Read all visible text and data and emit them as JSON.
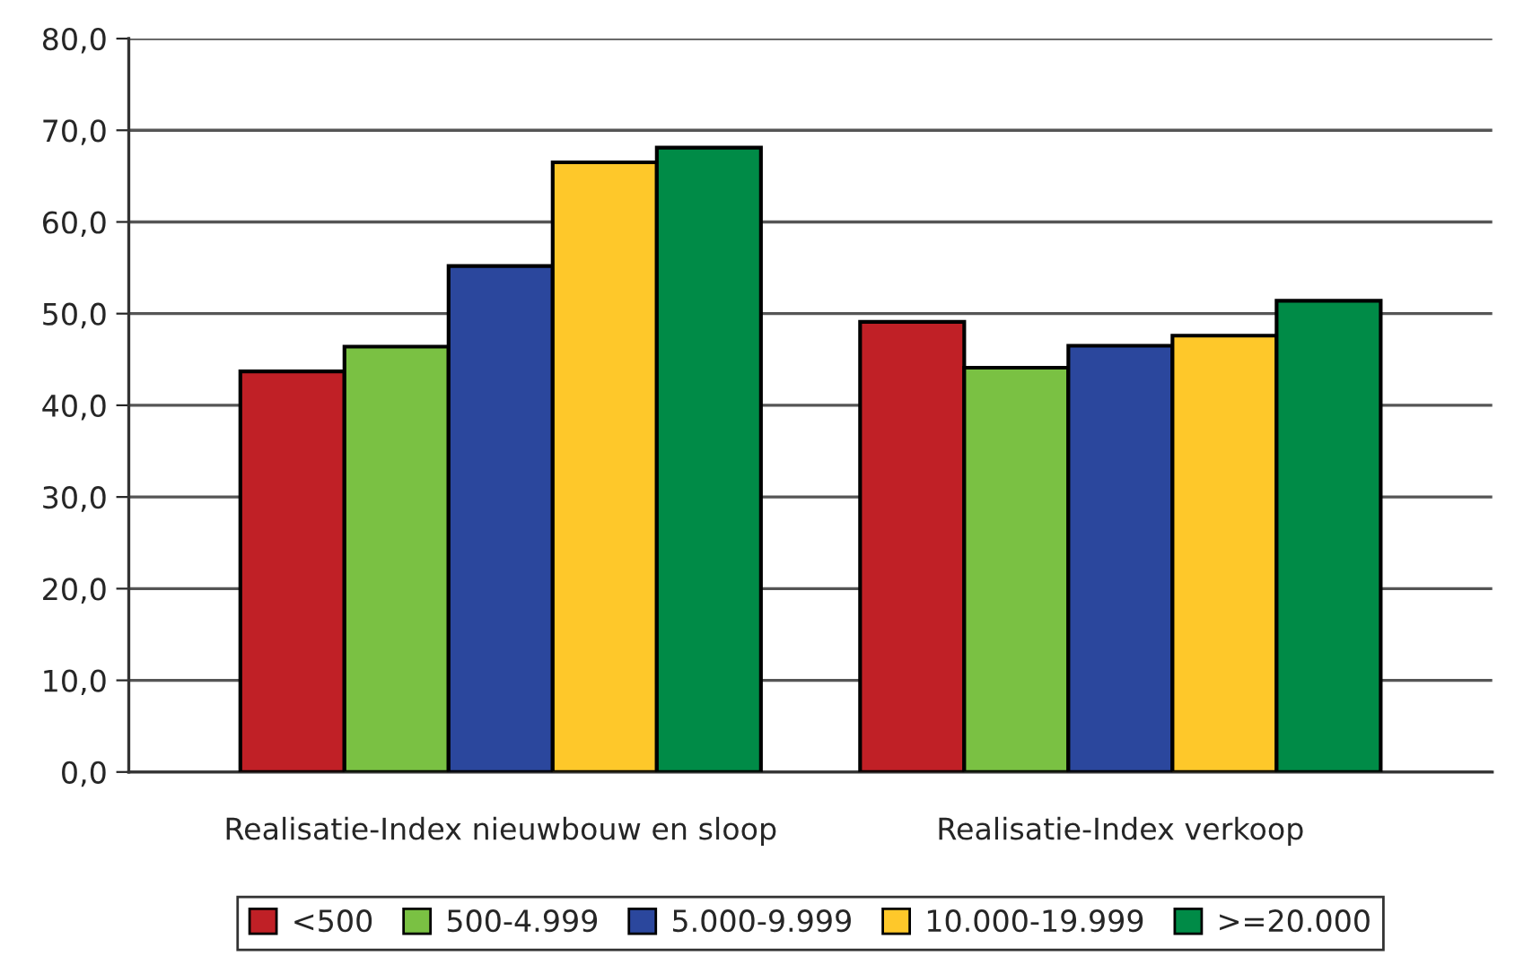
{
  "chart_data": {
    "type": "bar",
    "categories": [
      "Realisatie-Index nieuwbouw en sloop",
      "Realisatie-Index verkoop"
    ],
    "series": [
      {
        "name": "<500",
        "color": "#c02026",
        "values": [
          43.7,
          49.1
        ]
      },
      {
        "name": "500-4.999",
        "color": "#7ac143",
        "values": [
          46.4,
          44.1
        ]
      },
      {
        "name": "5.000-9.999",
        "color": "#2b479d",
        "values": [
          55.2,
          46.5
        ]
      },
      {
        "name": "10.000-19.999",
        "color": "#fec82a",
        "values": [
          66.5,
          47.6
        ]
      },
      {
        "name": ">=20.000",
        "color": "#008b47",
        "values": [
          68.1,
          51.4
        ]
      }
    ],
    "ylim": [
      0,
      80
    ],
    "yticks": [
      {
        "value": 0,
        "label": "0,0"
      },
      {
        "value": 10,
        "label": "10,0"
      },
      {
        "value": 20,
        "label": "20,0"
      },
      {
        "value": 30,
        "label": "30,0"
      },
      {
        "value": 40,
        "label": "40,0"
      },
      {
        "value": 50,
        "label": "50,0"
      },
      {
        "value": 60,
        "label": "60,0"
      },
      {
        "value": 70,
        "label": "70,0"
      },
      {
        "value": 80,
        "label": "80,0"
      }
    ],
    "grid": "y",
    "legend": "bottom"
  }
}
